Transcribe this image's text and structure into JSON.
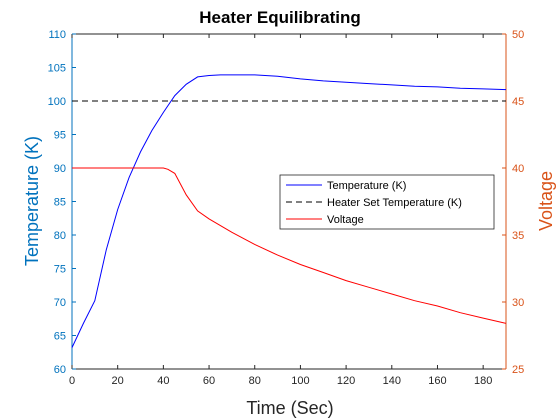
{
  "chart_data": {
    "type": "line",
    "title": "Heater Equilibrating",
    "xlabel": "Time (Sec)",
    "ylabel_left": "Temperature (K)",
    "ylabel_right": "Voltage",
    "xlim": [
      0,
      190
    ],
    "ylim_left": [
      60,
      110
    ],
    "ylim_right": [
      25,
      50
    ],
    "xticks": [
      0,
      20,
      40,
      60,
      80,
      100,
      120,
      140,
      160,
      180
    ],
    "yticks_left": [
      60,
      65,
      70,
      75,
      80,
      85,
      90,
      95,
      100,
      105,
      110
    ],
    "yticks_right": [
      25,
      30,
      35,
      40,
      45,
      50
    ],
    "grid": false,
    "legend_position": "center-right",
    "colors": {
      "left_axis": "#0072BD",
      "right_axis": "#D95319",
      "temperature": "#0000FF",
      "setpoint": "#000000",
      "voltage": "#FF0000"
    },
    "series": [
      {
        "name": "Temperature (K)",
        "axis": "left",
        "style": "solid",
        "color": "#0000FF",
        "x": [
          0,
          5,
          10,
          15,
          20,
          25,
          30,
          35,
          40,
          45,
          50,
          55,
          60,
          65,
          70,
          80,
          90,
          100,
          110,
          120,
          130,
          140,
          150,
          160,
          170,
          180,
          190
        ],
        "y": [
          63.2,
          66.8,
          70.2,
          77.8,
          83.8,
          88.6,
          92.4,
          95.6,
          98.3,
          100.8,
          102.5,
          103.6,
          103.8,
          103.9,
          103.9,
          103.9,
          103.7,
          103.3,
          103.0,
          102.8,
          102.6,
          102.4,
          102.2,
          102.1,
          101.9,
          101.8,
          101.7
        ]
      },
      {
        "name": "Heater Set Temperature (K)",
        "axis": "left",
        "style": "dashed",
        "color": "#000000",
        "x": [
          0,
          190
        ],
        "y": [
          100,
          100
        ]
      },
      {
        "name": "Voltage",
        "axis": "right",
        "style": "solid",
        "color": "#FF0000",
        "x": [
          0,
          10,
          20,
          30,
          40,
          42,
          45,
          50,
          55,
          60,
          70,
          80,
          90,
          100,
          110,
          120,
          130,
          140,
          150,
          160,
          170,
          180,
          190
        ],
        "y": [
          40,
          40,
          40,
          40,
          40,
          39.9,
          39.6,
          38.0,
          36.8,
          36.2,
          35.2,
          34.3,
          33.5,
          32.8,
          32.2,
          31.6,
          31.1,
          30.6,
          30.1,
          29.7,
          29.2,
          28.8,
          28.4
        ]
      }
    ]
  }
}
